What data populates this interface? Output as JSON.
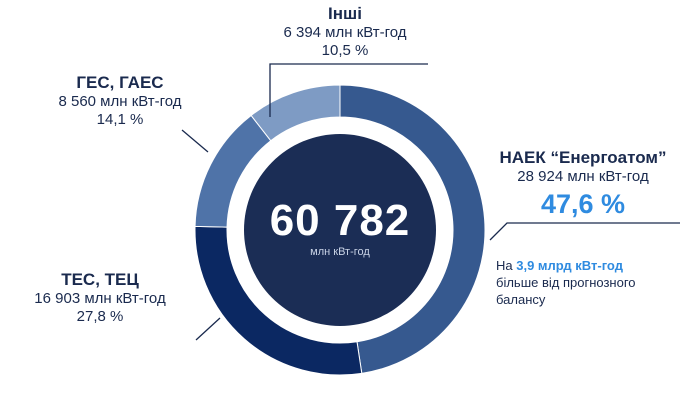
{
  "chart_data": {
    "type": "pie",
    "variant": "donut",
    "center": {
      "total": "60 782",
      "unit": "млн кВт-год"
    },
    "slices": [
      {
        "name": "НАЕК “Енергоатом”",
        "value_text": "28 924 млн кВт-год",
        "value": 28924,
        "pct_text": "47,6 %",
        "pct": 47.6,
        "color": "#36598f"
      },
      {
        "name": "ТЕС, ТЕЦ",
        "value_text": "16 903 млн кВт-год",
        "value": 16903,
        "pct_text": "27,8 %",
        "pct": 27.8,
        "color": "#0b2862"
      },
      {
        "name": "ГЕС, ГАЕС",
        "value_text": "8 560 млн кВт-год",
        "value": 8560,
        "pct_text": "14,1 %",
        "pct": 14.1,
        "color": "#4f73a8"
      },
      {
        "name": "Інші",
        "value_text": "6 394 млн кВт-год",
        "value": 6394,
        "pct_text": "10,5 %",
        "pct": 10.5,
        "color": "#7e9bc4"
      }
    ],
    "note": {
      "prefix": "На ",
      "highlight": "3,9 млрд кВт-год",
      "rest": "більше від прогнозного балансу"
    }
  }
}
